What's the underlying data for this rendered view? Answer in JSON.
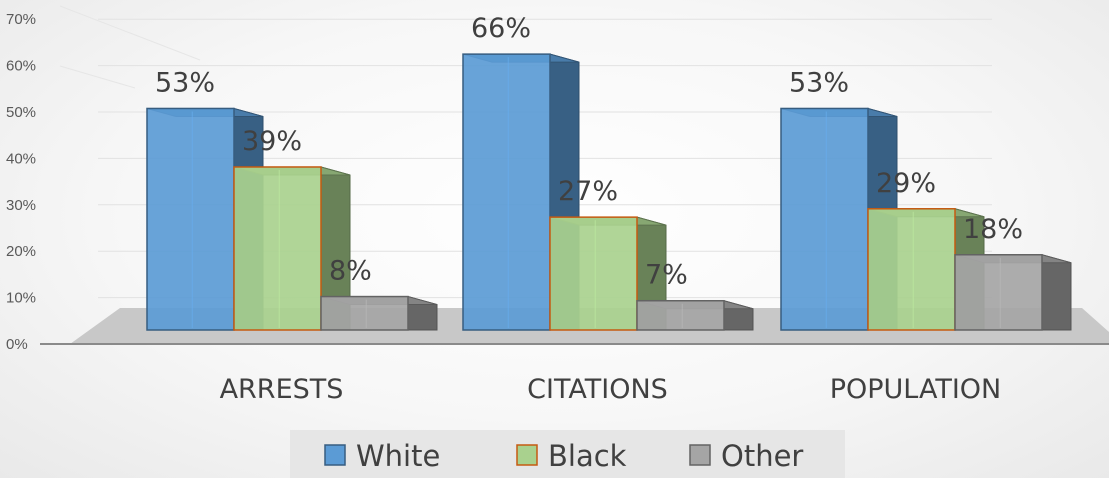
{
  "chart_data": {
    "type": "bar",
    "categories": [
      "ARRESTS",
      "CITATIONS",
      "POPULATION"
    ],
    "series": [
      {
        "name": "White",
        "values": [
          53,
          66,
          53
        ],
        "labels": [
          "53%",
          "66%",
          "53%"
        ]
      },
      {
        "name": "Black",
        "values": [
          39,
          27,
          29
        ],
        "labels": [
          "39%",
          "27%",
          "29%"
        ]
      },
      {
        "name": "Other",
        "values": [
          8,
          7,
          18
        ],
        "labels": [
          "8%",
          "7%",
          "18%"
        ]
      }
    ],
    "yticks": [
      "0%",
      "10%",
      "20%",
      "30%",
      "40%",
      "50%",
      "60%",
      "70%"
    ],
    "ylim": [
      0,
      70
    ],
    "legend": "bottom",
    "style": "3d-clustered-column",
    "colors": {
      "White": "#5b9bd5",
      "Black": "#a9d18e",
      "Other": "#a5a5a5"
    }
  }
}
